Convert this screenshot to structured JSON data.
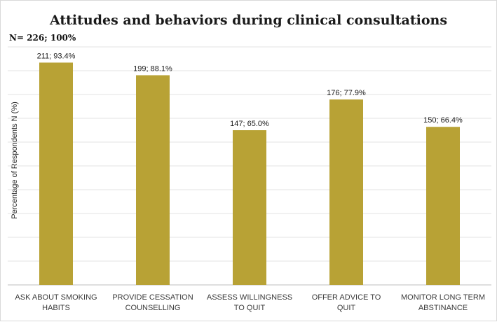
{
  "chart_data": {
    "type": "bar",
    "title": "Attitudes and behaviors during clinical consultations",
    "subtitle": "N= 226; 100%",
    "ylabel": "Percentage of Respondents N (%)",
    "xlabel": "",
    "ylim": [
      0,
      100
    ],
    "grid": true,
    "bar_color": "#b8a235",
    "categories": [
      [
        "ASK ABOUT SMOKING",
        "HABITS"
      ],
      [
        "PROVIDE CESSATION",
        "COUNSELLING"
      ],
      [
        "ASSESS WILLINGNESS",
        "TO QUIT"
      ],
      [
        "OFFER ADVICE TO",
        "QUIT"
      ],
      [
        "MONITOR LONG TERM",
        "ABSTINANCE"
      ]
    ],
    "values": [
      93.4,
      88.1,
      65.0,
      77.9,
      66.4
    ],
    "data_labels": [
      "211; 93.4%",
      "199; 88.1%",
      "147; 65.0%",
      "176; 77.9%",
      "150; 66.4%"
    ]
  }
}
